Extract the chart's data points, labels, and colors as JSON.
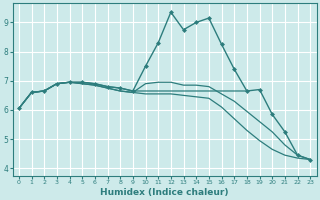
{
  "xlabel": "Humidex (Indice chaleur)",
  "background_color": "#cdeaea",
  "line_color": "#2d7d7d",
  "grid_color": "#ffffff",
  "xlim": [
    -0.5,
    23.5
  ],
  "ylim": [
    3.75,
    9.65
  ],
  "yticks": [
    4,
    5,
    6,
    7,
    8,
    9
  ],
  "xticks": [
    0,
    1,
    2,
    3,
    4,
    5,
    6,
    7,
    8,
    9,
    10,
    11,
    12,
    13,
    14,
    15,
    16,
    17,
    18,
    19,
    20,
    21,
    22,
    23
  ],
  "lines": [
    {
      "x": [
        0,
        1,
        2,
        3,
        4,
        5,
        6,
        7,
        8,
        9,
        10,
        11,
        12,
        13,
        14,
        15,
        16,
        17,
        18,
        19,
        20,
        21,
        22,
        23
      ],
      "y": [
        6.05,
        6.6,
        6.65,
        6.9,
        6.95,
        6.95,
        6.9,
        6.8,
        6.75,
        6.65,
        7.5,
        8.3,
        9.35,
        8.75,
        9.0,
        9.15,
        8.25,
        7.4,
        6.65,
        6.7,
        5.85,
        5.25,
        4.45,
        4.3
      ],
      "marker": "D",
      "markersize": 2.0,
      "linewidth": 1.0
    },
    {
      "x": [
        0,
        1,
        2,
        3,
        4,
        5,
        6,
        7,
        8,
        9,
        10,
        11,
        12,
        13,
        14,
        15,
        16,
        17,
        18
      ],
      "y": [
        6.05,
        6.6,
        6.65,
        6.9,
        6.95,
        6.95,
        6.9,
        6.8,
        6.75,
        6.65,
        6.65,
        6.65,
        6.65,
        6.65,
        6.65,
        6.65,
        6.65,
        6.65,
        6.65
      ],
      "marker": null,
      "markersize": 0,
      "linewidth": 0.9
    },
    {
      "x": [
        0,
        1,
        2,
        3,
        4,
        5,
        6,
        7,
        8,
        9,
        10,
        11,
        12,
        13,
        14,
        15,
        16,
        17,
        18,
        19,
        20,
        21,
        22,
        23
      ],
      "y": [
        6.05,
        6.6,
        6.65,
        6.9,
        6.95,
        6.9,
        6.85,
        6.75,
        6.65,
        6.6,
        6.55,
        6.55,
        6.55,
        6.5,
        6.45,
        6.4,
        6.1,
        5.7,
        5.3,
        4.95,
        4.65,
        4.45,
        4.35,
        4.3
      ],
      "marker": null,
      "markersize": 0,
      "linewidth": 0.9
    },
    {
      "x": [
        0,
        1,
        2,
        3,
        4,
        5,
        6,
        7,
        8,
        9,
        10,
        11,
        12,
        13,
        14,
        15,
        16,
        17,
        18,
        19,
        20,
        21,
        22,
        23
      ],
      "y": [
        6.05,
        6.6,
        6.65,
        6.9,
        6.95,
        6.9,
        6.85,
        6.75,
        6.65,
        6.6,
        6.9,
        6.95,
        6.95,
        6.85,
        6.85,
        6.8,
        6.55,
        6.3,
        5.95,
        5.6,
        5.25,
        4.8,
        4.45,
        4.3
      ],
      "marker": null,
      "markersize": 0,
      "linewidth": 0.9
    }
  ]
}
